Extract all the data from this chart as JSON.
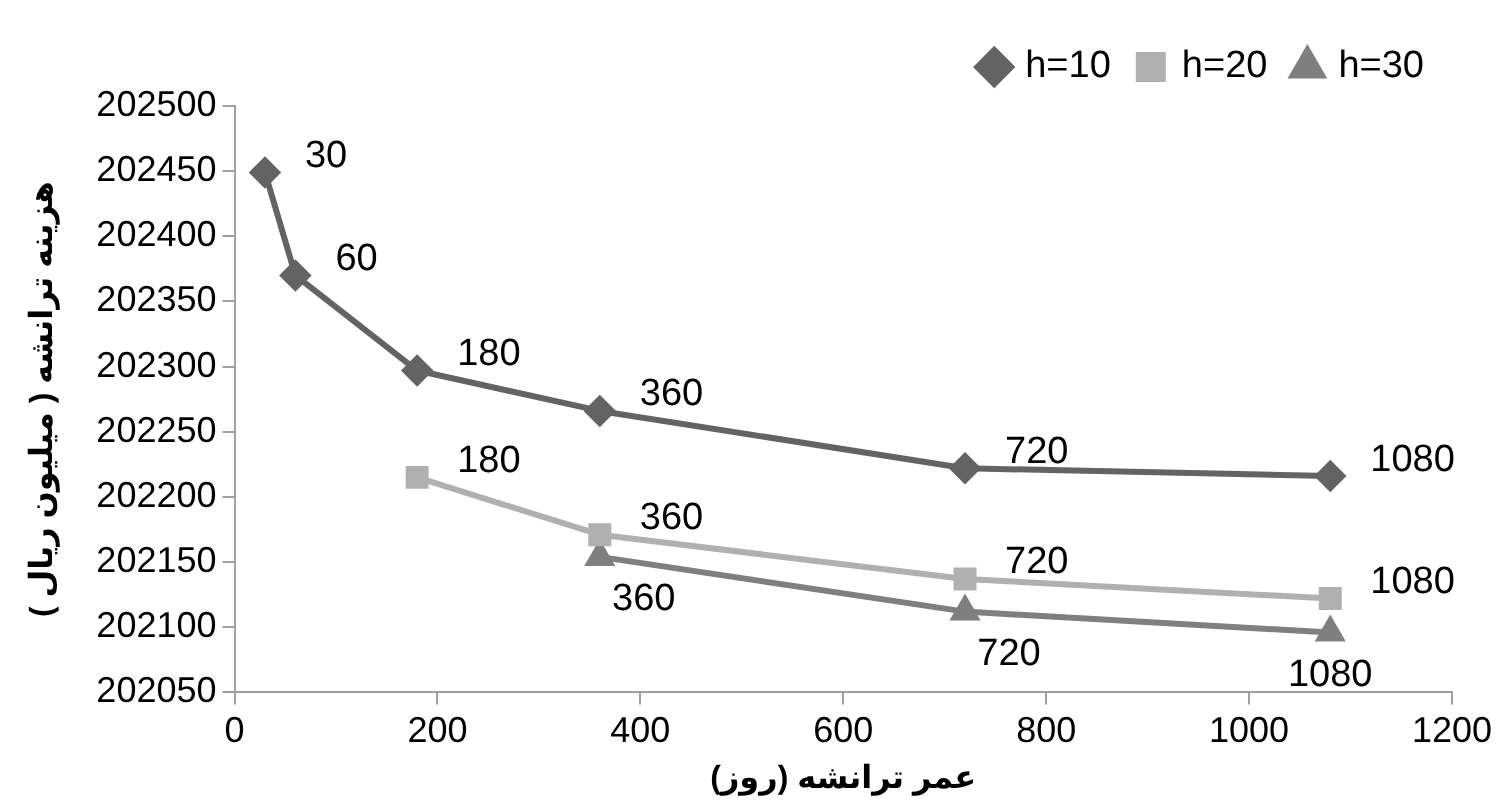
{
  "chart_data": {
    "type": "line",
    "xlabel": "عمر ترانشه (روز)",
    "ylabel": "هزینه ترانشه ( میلیون ریال )",
    "xlim": [
      0,
      1200
    ],
    "xticks": [
      0,
      200,
      400,
      600,
      800,
      1000,
      1200
    ],
    "ylim": [
      202050,
      202500
    ],
    "yticks": [
      202050,
      202100,
      202150,
      202200,
      202250,
      202300,
      202350,
      202400,
      202450,
      202500
    ],
    "grid": false,
    "legend": "top right",
    "series": [
      {
        "name": "h=10",
        "color": "#636363",
        "marker": "diamond",
        "x": [
          30,
          60,
          180,
          360,
          720,
          1080
        ],
        "values": [
          202449,
          202370,
          202297,
          202266,
          202222,
          202216
        ]
      },
      {
        "name": "h=20",
        "color": "#b0b0b0",
        "marker": "square",
        "x": [
          180,
          360,
          720,
          1080
        ],
        "values": [
          202215,
          202171,
          202137,
          202122
        ]
      },
      {
        "name": "h=30",
        "color": "#7f7f7f",
        "marker": "triangle",
        "x": [
          360,
          720,
          1080
        ],
        "values": [
          202154,
          202112,
          202096
        ]
      }
    ],
    "annotations": [
      {
        "text": "30",
        "x": 30,
        "y": 202449
      },
      {
        "text": "60",
        "x": 60,
        "y": 202370
      },
      {
        "text": "180",
        "x": 180,
        "y": 202297
      },
      {
        "text": "360",
        "x": 360,
        "y": 202266
      },
      {
        "text": "720",
        "x": 720,
        "y": 202222
      },
      {
        "text": "1080",
        "x": 1080,
        "y": 202216
      },
      {
        "text": "180",
        "x": 180,
        "y": 202215
      },
      {
        "text": "360",
        "x": 360,
        "y": 202171
      },
      {
        "text": "720",
        "x": 720,
        "y": 202137
      },
      {
        "text": "1080",
        "x": 1080,
        "y": 202122
      },
      {
        "text": "360",
        "x": 360,
        "y": 202154
      },
      {
        "text": "720",
        "x": 720,
        "y": 202112
      },
      {
        "text": "1080",
        "x": 1080,
        "y": 202096
      }
    ]
  }
}
